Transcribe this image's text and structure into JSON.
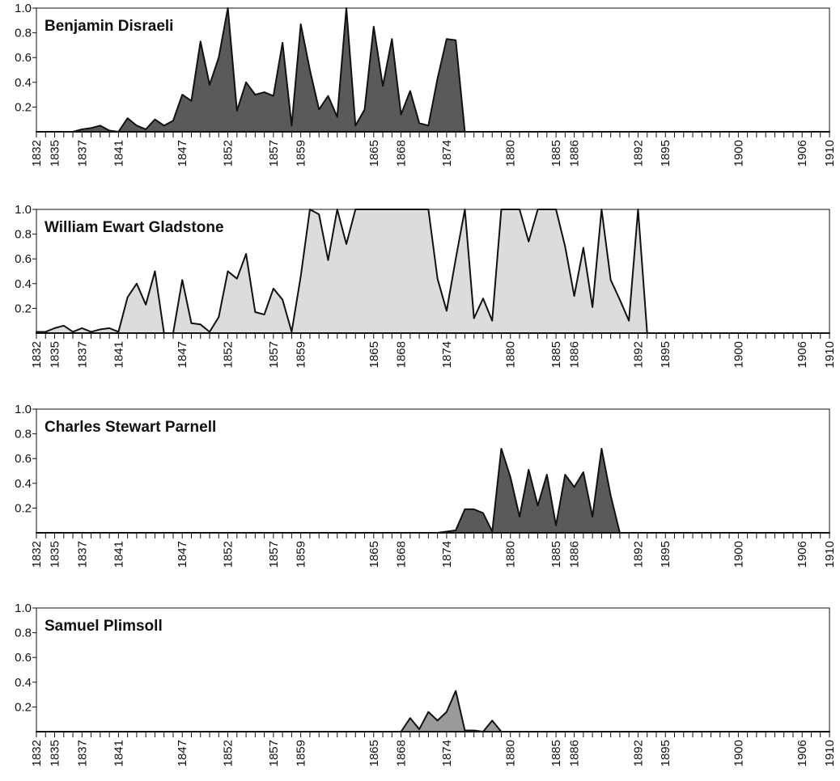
{
  "chart_data": [
    {
      "type": "area",
      "title": "Benjamin Disraeli",
      "color": "#5a5a5a",
      "categories": [
        "1832",
        null,
        "1835",
        null,
        null,
        "1837",
        null,
        null,
        null,
        "1841",
        null,
        null,
        null,
        null,
        null,
        null,
        "1847",
        null,
        null,
        null,
        null,
        "1852",
        null,
        null,
        null,
        null,
        "1857",
        null,
        null,
        "1859",
        null,
        null,
        null,
        null,
        null,
        null,
        null,
        "1865",
        null,
        null,
        "1868",
        null,
        null,
        null,
        null,
        "1874",
        null,
        null,
        null,
        null,
        null,
        null,
        "1880",
        null,
        null,
        null,
        null,
        "1885",
        null,
        "1886",
        null,
        null,
        null,
        null,
        null,
        null,
        "1892",
        null,
        null,
        "1895",
        null,
        null,
        null,
        null,
        null,
        null,
        null,
        "1900",
        null,
        null,
        null,
        null,
        null,
        null,
        "1906",
        null,
        null,
        "1910"
      ],
      "values": [
        0,
        0,
        0,
        0,
        0,
        0.02,
        0.03,
        0.05,
        0.01,
        0,
        0.11,
        0.05,
        0.02,
        0.1,
        0.05,
        0.09,
        0.3,
        0.25,
        0.73,
        0.38,
        0.6,
        1.0,
        0.17,
        0.4,
        0.3,
        0.32,
        0.29,
        0.72,
        0.05,
        0.87,
        0.5,
        0.18,
        0.29,
        0.12,
        1.0,
        0.05,
        0.18,
        0.85,
        0.37,
        0.75,
        0.14,
        0.33,
        0.07,
        0.05,
        0.43,
        0.75,
        0.74,
        0,
        0,
        0,
        0,
        0,
        0,
        0,
        0,
        0,
        0,
        0,
        0,
        0,
        0,
        0,
        0,
        0,
        0,
        0,
        0,
        0,
        0,
        0,
        0,
        0,
        0,
        0,
        0,
        0,
        0,
        0,
        0,
        0,
        0,
        0,
        0,
        0,
        0,
        0,
        0,
        0
      ],
      "ylim": [
        0,
        1
      ],
      "yticks": [
        0.2,
        0.4,
        0.6,
        0.8,
        {
          "value": 1,
          "label": "1.0"
        }
      ]
    },
    {
      "type": "area",
      "title": "William Ewart Gladstone",
      "color": "#dcdcdc",
      "categories": [
        "1832",
        null,
        "1835",
        null,
        null,
        "1837",
        null,
        null,
        null,
        "1841",
        null,
        null,
        null,
        null,
        null,
        null,
        "1847",
        null,
        null,
        null,
        null,
        "1852",
        null,
        null,
        null,
        null,
        "1857",
        null,
        null,
        "1859",
        null,
        null,
        null,
        null,
        null,
        null,
        null,
        "1865",
        null,
        null,
        "1868",
        null,
        null,
        null,
        null,
        "1874",
        null,
        null,
        null,
        null,
        null,
        null,
        "1880",
        null,
        null,
        null,
        null,
        "1885",
        null,
        "1886",
        null,
        null,
        null,
        null,
        null,
        null,
        "1892",
        null,
        null,
        "1895",
        null,
        null,
        null,
        null,
        null,
        null,
        null,
        "1900",
        null,
        null,
        null,
        null,
        null,
        null,
        "1906",
        null,
        null,
        "1910"
      ],
      "values": [
        0.01,
        0.01,
        0.04,
        0.06,
        0.01,
        0.04,
        0.01,
        0.03,
        0.04,
        0.01,
        0.29,
        0.4,
        0.23,
        0.5,
        0,
        0,
        0.43,
        0.08,
        0.07,
        0.01,
        0.13,
        0.5,
        0.44,
        0.64,
        0.17,
        0.15,
        0.36,
        0.27,
        0.01,
        0.46,
        1,
        0.96,
        0.59,
        1,
        0.72,
        1,
        1,
        1,
        1,
        1,
        1,
        1,
        1,
        1,
        0.44,
        0.18,
        0.6,
        1,
        0.12,
        0.28,
        0.1,
        1,
        1,
        1,
        0.74,
        1,
        1,
        1,
        0.7,
        0.3,
        0.69,
        0.21,
        1,
        0.43,
        0.27,
        0.1,
        1,
        0,
        0,
        0,
        0,
        0,
        0,
        0,
        0,
        0,
        0,
        0,
        0,
        0,
        0,
        0,
        0,
        0,
        0,
        0,
        0,
        0
      ],
      "ylim": [
        0,
        1
      ],
      "yticks": [
        0.2,
        0.4,
        0.6,
        0.8,
        {
          "value": 1,
          "label": "1.0"
        }
      ]
    },
    {
      "type": "area",
      "title": "Charles Stewart Parnell",
      "color": "#5a5a5a",
      "categories": [
        "1832",
        null,
        "1835",
        null,
        null,
        "1837",
        null,
        null,
        null,
        "1841",
        null,
        null,
        null,
        null,
        null,
        null,
        "1847",
        null,
        null,
        null,
        null,
        "1852",
        null,
        null,
        null,
        null,
        "1857",
        null,
        null,
        "1859",
        null,
        null,
        null,
        null,
        null,
        null,
        null,
        "1865",
        null,
        null,
        "1868",
        null,
        null,
        null,
        null,
        "1874",
        null,
        null,
        null,
        null,
        null,
        null,
        "1880",
        null,
        null,
        null,
        null,
        "1885",
        null,
        "1886",
        null,
        null,
        null,
        null,
        null,
        null,
        "1892",
        null,
        null,
        "1895",
        null,
        null,
        null,
        null,
        null,
        null,
        null,
        "1900",
        null,
        null,
        null,
        null,
        null,
        null,
        "1906",
        null,
        null,
        "1910"
      ],
      "values": [
        0,
        0,
        0,
        0,
        0,
        0,
        0,
        0,
        0,
        0,
        0,
        0,
        0,
        0,
        0,
        0,
        0,
        0,
        0,
        0,
        0,
        0,
        0,
        0,
        0,
        0,
        0,
        0,
        0,
        0,
        0,
        0,
        0,
        0,
        0,
        0,
        0,
        0,
        0,
        0,
        0,
        0,
        0,
        0,
        0,
        0.01,
        0.02,
        0.19,
        0.19,
        0.16,
        0.01,
        0.68,
        0.45,
        0.13,
        0.51,
        0.22,
        0.47,
        0.06,
        0.47,
        0.37,
        0.49,
        0.13,
        0.68,
        0.3,
        0,
        0,
        0,
        0,
        0,
        0,
        0,
        0,
        0,
        0,
        0,
        0,
        0,
        0,
        0,
        0,
        0,
        0,
        0,
        0,
        0,
        0,
        0,
        0
      ],
      "ylim": [
        0,
        1
      ],
      "yticks": [
        0.2,
        0.4,
        0.6,
        0.8,
        {
          "value": 1,
          "label": "1.0"
        }
      ]
    },
    {
      "type": "area",
      "title": "Samuel Plimsoll",
      "color": "#9a9a9a",
      "categories": [
        "1832",
        null,
        "1835",
        null,
        null,
        "1837",
        null,
        null,
        null,
        "1841",
        null,
        null,
        null,
        null,
        null,
        null,
        "1847",
        null,
        null,
        null,
        null,
        "1852",
        null,
        null,
        null,
        null,
        "1857",
        null,
        null,
        "1859",
        null,
        null,
        null,
        null,
        null,
        null,
        null,
        "1865",
        null,
        null,
        "1868",
        null,
        null,
        null,
        null,
        "1874",
        null,
        null,
        null,
        null,
        null,
        null,
        "1880",
        null,
        null,
        null,
        null,
        "1885",
        null,
        "1886",
        null,
        null,
        null,
        null,
        null,
        null,
        "1892",
        null,
        null,
        "1895",
        null,
        null,
        null,
        null,
        null,
        null,
        null,
        "1900",
        null,
        null,
        null,
        null,
        null,
        null,
        "1906",
        null,
        null,
        "1910"
      ],
      "values": [
        0,
        0,
        0,
        0,
        0,
        0,
        0,
        0,
        0,
        0,
        0,
        0,
        0,
        0,
        0,
        0,
        0,
        0,
        0,
        0,
        0,
        0,
        0,
        0,
        0,
        0,
        0,
        0,
        0,
        0,
        0,
        0,
        0,
        0,
        0,
        0,
        0,
        0,
        0,
        0,
        0,
        0.11,
        0.02,
        0.16,
        0.09,
        0.16,
        0.33,
        0.01,
        0.01,
        0,
        0.09,
        0,
        0,
        0,
        0,
        0,
        0,
        0,
        0,
        0,
        0,
        0,
        0,
        0,
        0,
        0,
        0,
        0,
        0,
        0,
        0,
        0,
        0,
        0,
        0,
        0,
        0,
        0,
        0,
        0,
        0,
        0,
        0,
        0,
        0,
        0,
        0,
        0
      ],
      "ylim": [
        0,
        1
      ],
      "yticks": [
        0.2,
        0.4,
        0.6,
        0.8,
        {
          "value": 1,
          "label": "1.0"
        }
      ]
    }
  ]
}
